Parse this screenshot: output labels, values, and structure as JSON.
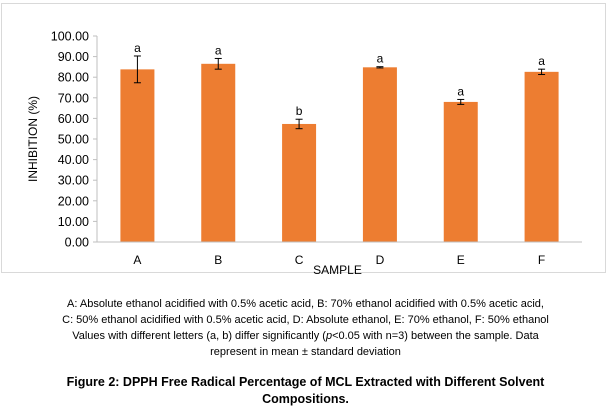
{
  "chart_data": {
    "type": "bar",
    "xlabel": "SAMPLE",
    "ylabel": "INHIBITION (%)",
    "ylim": [
      0,
      100
    ],
    "ytick_step": 10,
    "ytick_labels": [
      "0.00",
      "10.00",
      "20.00",
      "30.00",
      "40.00",
      "50.00",
      "60.00",
      "70.00",
      "80.00",
      "90.00",
      "100.00"
    ],
    "grid": false,
    "legend": "none",
    "categories": [
      "A",
      "B",
      "C",
      "D",
      "E",
      "F"
    ],
    "values": [
      83.8,
      86.5,
      57.3,
      84.8,
      68.0,
      82.6
    ],
    "errors": [
      6.5,
      2.6,
      2.3,
      0.3,
      1.2,
      1.3
    ],
    "letters": [
      "a",
      "a",
      "b",
      "a",
      "a",
      "a"
    ],
    "bar_color": "#ed7d31"
  },
  "notes": {
    "line1": "A: Absolute ethanol acidified  with 0.5% acetic acid,  B: 70% ethanol acidified  with 0.5% acetic acid,",
    "line2": "C: 50% ethanol acidified  with 0.5% acetic acid,  D: Absolute ethanol,  E: 70% ethanol,  F: 50% ethanol",
    "line3_a": "Values with different letters (a, b) differ significantly  (",
    "line3_p": "p",
    "line3_b": "<0.05 with n=3) between the sample. Data",
    "line4": "represent in mean ± standard deviation"
  },
  "caption": {
    "line1": "Figure 2: DPPH Free Radical Percentage of MCL Extracted with Different Solvent",
    "line2": "Compositions."
  }
}
